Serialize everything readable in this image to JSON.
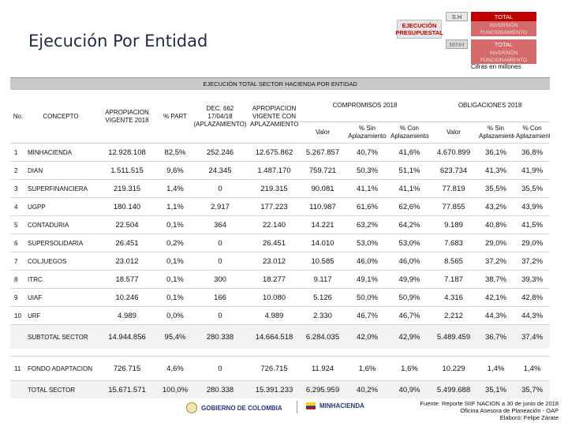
{
  "header": {
    "title": "Ejecución Por Entidad",
    "filters": {
      "ejecucion": "EJECUCIÓN PRESUPUESTAL",
      "sh": "S.H",
      "total_1": "TOTAL",
      "inversion_1": "INVERSIÓN FUNCIONAMIENTO",
      "minh": "MINH",
      "total_2": "TOTAL",
      "inversion_2": "INVERSIÓN FUNCIONAMIENTO"
    },
    "units": "Cifras en millones"
  },
  "table": {
    "banner": "EJECUCIÓN TOTAL SECTOR HACIENDA POR ENTIDAD",
    "headers": {
      "no": "No.",
      "concepto": "CONCEPTO",
      "apropiacion_vigente": "APROPIACION VIGENTE 2018",
      "pct_part": "% PART",
      "decreto": "DEC. 662 17/04/18 (APLAZAMIENTO)",
      "apropiacion_con_aplazamiento": "APROPIACION VIGENTE CON APLAZAMIENTO",
      "compromisos": "COMPROMISOS 2018",
      "obligaciones": "OBLIGACIONES 2018",
      "valor": "Valor",
      "pct_sin": "% Sin Aplazamiento",
      "pct_con": "% Con Aplazamiento"
    },
    "rows": [
      {
        "no": "1",
        "concepto": "MINHACIENDA",
        "apropiacion": "12.928.108",
        "part": "82,5%",
        "decreto": "252.246",
        "aprop_aplaz": "12.675.862",
        "comp_valor": "5.267.857",
        "comp_sin": "40,7%",
        "comp_con": "41,6%",
        "obl_valor": "4.670.899",
        "obl_sin": "36,1%",
        "obl_con": "36,8%"
      },
      {
        "no": "2",
        "concepto": "DIAN",
        "apropiacion": "1.511.515",
        "part": "9,6%",
        "decreto": "24.345",
        "aprop_aplaz": "1.487.170",
        "comp_valor": "759.721",
        "comp_sin": "50,3%",
        "comp_con": "51,1%",
        "obl_valor": "623.734",
        "obl_sin": "41,3%",
        "obl_con": "41,9%"
      },
      {
        "no": "3",
        "concepto": "SUPERFINANCIERA",
        "apropiacion": "219.315",
        "part": "1,4%",
        "decreto": "0",
        "aprop_aplaz": "219.315",
        "comp_valor": "90.081",
        "comp_sin": "41,1%",
        "comp_con": "41,1%",
        "obl_valor": "77.819",
        "obl_sin": "35,5%",
        "obl_con": "35,5%"
      },
      {
        "no": "4",
        "concepto": "UGPP",
        "apropiacion": "180.140",
        "part": "1,1%",
        "decreto": "2.917",
        "aprop_aplaz": "177.223",
        "comp_valor": "110.987",
        "comp_sin": "61,6%",
        "comp_con": "62,6%",
        "obl_valor": "77.855",
        "obl_sin": "43,2%",
        "obl_con": "43,9%"
      },
      {
        "no": "5",
        "concepto": "CONTADURIA",
        "apropiacion": "22.504",
        "part": "0,1%",
        "decreto": "364",
        "aprop_aplaz": "22.140",
        "comp_valor": "14.221",
        "comp_sin": "63,2%",
        "comp_con": "64,2%",
        "obl_valor": "9.189",
        "obl_sin": "40,8%",
        "obl_con": "41,5%"
      },
      {
        "no": "6",
        "concepto": "SUPERSOLIDARIA",
        "apropiacion": "26.451",
        "part": "0,2%",
        "decreto": "0",
        "aprop_aplaz": "26.451",
        "comp_valor": "14.010",
        "comp_sin": "53,0%",
        "comp_con": "53,0%",
        "obl_valor": "7.683",
        "obl_sin": "29,0%",
        "obl_con": "29,0%"
      },
      {
        "no": "7",
        "concepto": "COLJUEGOS",
        "apropiacion": "23.012",
        "part": "0,1%",
        "decreto": "0",
        "aprop_aplaz": "23.012",
        "comp_valor": "10.585",
        "comp_sin": "46,0%",
        "comp_con": "46,0%",
        "obl_valor": "8.565",
        "obl_sin": "37,2%",
        "obl_con": "37,2%"
      },
      {
        "no": "8",
        "concepto": "ITRC",
        "apropiacion": "18.577",
        "part": "0,1%",
        "decreto": "300",
        "aprop_aplaz": "18.277",
        "comp_valor": "9.117",
        "comp_sin": "49,1%",
        "comp_con": "49,9%",
        "obl_valor": "7.187",
        "obl_sin": "38,7%",
        "obl_con": "39,3%"
      },
      {
        "no": "9",
        "concepto": "UIAF",
        "apropiacion": "10.246",
        "part": "0,1%",
        "decreto": "166",
        "aprop_aplaz": "10.080",
        "comp_valor": "5.126",
        "comp_sin": "50,0%",
        "comp_con": "50,9%",
        "obl_valor": "4.316",
        "obl_sin": "42,1%",
        "obl_con": "42,8%"
      },
      {
        "no": "10",
        "concepto": "URF",
        "apropiacion": "4.989",
        "part": "0,0%",
        "decreto": "0",
        "aprop_aplaz": "4.989",
        "comp_valor": "2.330",
        "comp_sin": "46,7%",
        "comp_con": "46,7%",
        "obl_valor": "2.212",
        "obl_sin": "44,3%",
        "obl_con": "44,3%"
      }
    ],
    "subtotal": {
      "no": "",
      "concepto": "SUBTOTAL SECTOR",
      "apropiacion": "14.944.856",
      "part": "95,4%",
      "decreto": "280.338",
      "aprop_aplaz": "14.664.518",
      "comp_valor": "6.284.035",
      "comp_sin": "42,0%",
      "comp_con": "42,9%",
      "obl_valor": "5.489.459",
      "obl_sin": "36,7%",
      "obl_con": "37,4%"
    },
    "fondo": {
      "no": "11",
      "concepto": "FONDO ADAPTACION",
      "apropiacion": "726.715",
      "part": "4,6%",
      "decreto": "0",
      "aprop_aplaz": "726.715",
      "comp_valor": "11.924",
      "comp_sin": "1,6%",
      "comp_con": "1,6%",
      "obl_valor": "10.229",
      "obl_sin": "1,4%",
      "obl_con": "1,4%"
    },
    "total": {
      "no": "",
      "concepto": "TOTAL SECTOR",
      "apropiacion": "15.671.571",
      "part": "100,0%",
      "decreto": "280.338",
      "aprop_aplaz": "15.391.233",
      "comp_valor": "6.295.959",
      "comp_sin": "40,2%",
      "comp_con": "40,9%",
      "obl_valor": "5.499.688",
      "obl_sin": "35,1%",
      "obl_con": "35,7%"
    }
  },
  "footer": {
    "logo_gobierno": "GOBIERNO DE COLOMBIA",
    "logo_minhacienda": "MINHACIENDA",
    "source_line1": "Fuente: Reporte SIIF NACION a 30 de junio de 2018",
    "source_line2": "Oficina Asesora de Planeación - OAP",
    "source_line3": "Elaboró: Felipe Zárate"
  }
}
